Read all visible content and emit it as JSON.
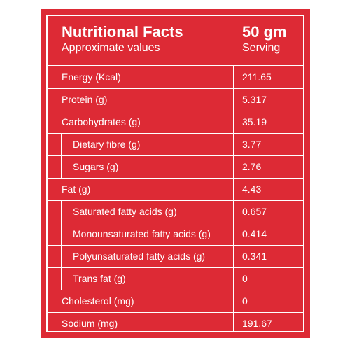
{
  "colors": {
    "background": "#dd2a35",
    "text": "#ffffff"
  },
  "header": {
    "title": "Nutritional Facts",
    "subtitle": "Approximate values",
    "quantity": "50 gm",
    "serving": "Serving"
  },
  "rows": [
    {
      "label": "Energy (Kcal)",
      "value": "211.65",
      "sub": false
    },
    {
      "label": "Protein (g)",
      "value": "5.317",
      "sub": false
    },
    {
      "label": "Carbohydrates (g)",
      "value": "35.19",
      "sub": false
    },
    {
      "label": "Dietary fibre (g)",
      "value": "3.77",
      "sub": true
    },
    {
      "label": "Sugars (g)",
      "value": "2.76",
      "sub": true
    },
    {
      "label": "Fat (g)",
      "value": "4.43",
      "sub": false
    },
    {
      "label": "Saturated fatty acids (g)",
      "value": "0.657",
      "sub": true
    },
    {
      "label": "Monounsaturated fatty acids (g)",
      "value": "0.414",
      "sub": true
    },
    {
      "label": "Polyunsaturated fatty acids (g)",
      "value": "0.341",
      "sub": true
    },
    {
      "label": "Trans fat (g)",
      "value": "0",
      "sub": true
    },
    {
      "label": "Cholesterol (mg)",
      "value": "0",
      "sub": false
    },
    {
      "label": "Sodium (mg)",
      "value": "191.67",
      "sub": false
    }
  ]
}
